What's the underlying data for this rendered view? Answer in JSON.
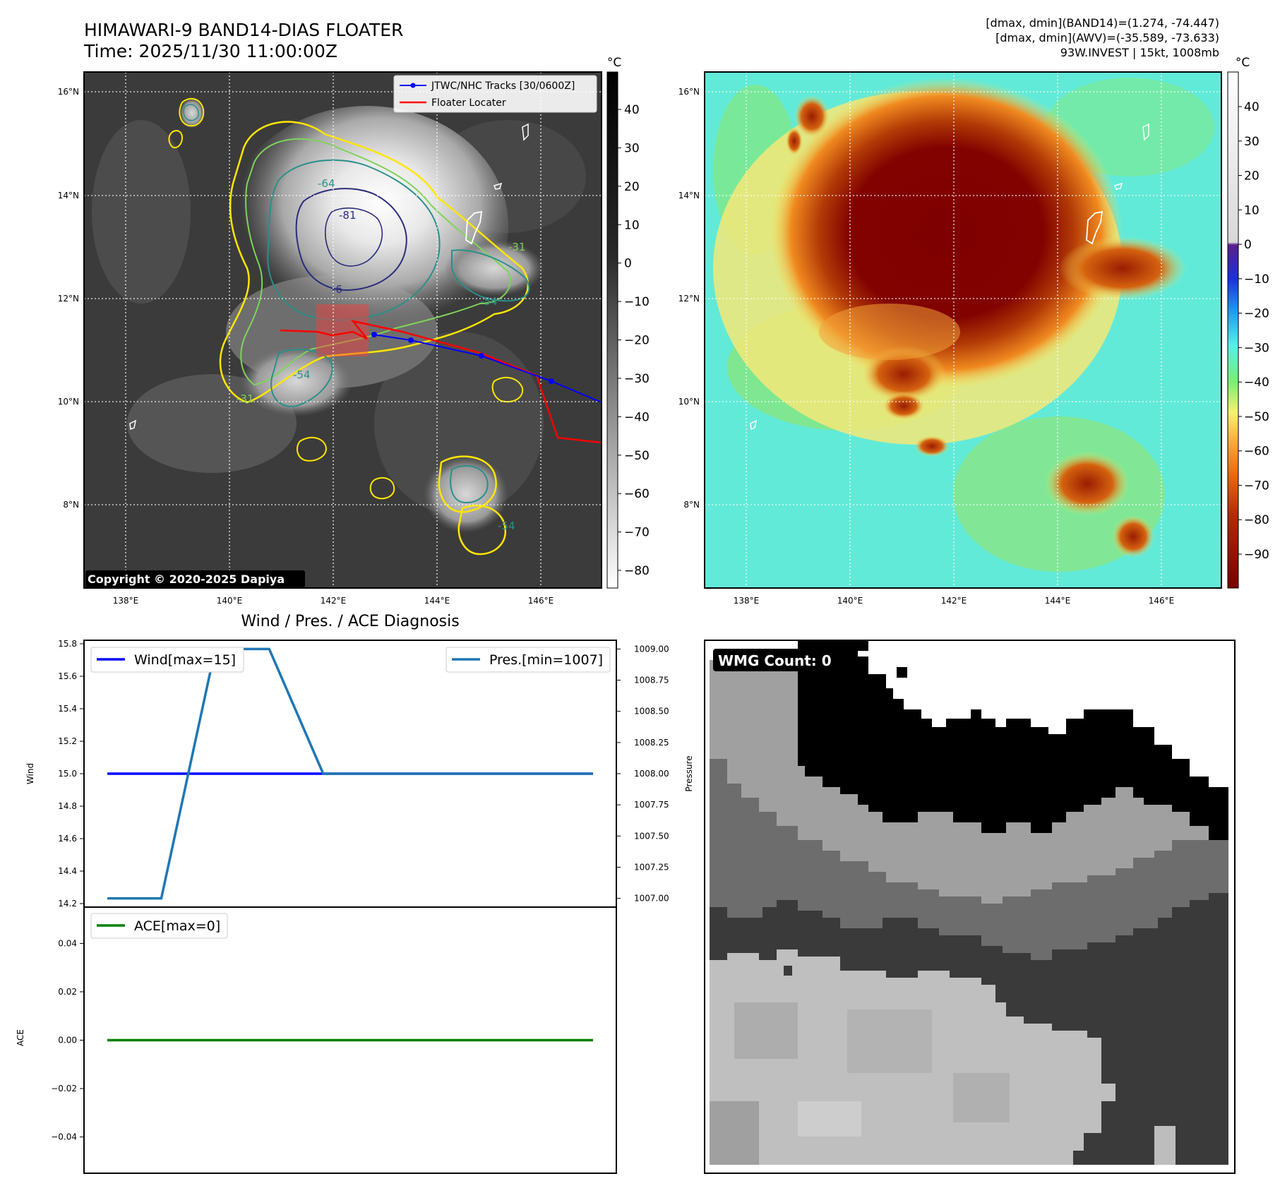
{
  "header": {
    "title_line1": "HIMAWARI-9 BAND14-DIAS FLOATER",
    "title_line2": "Time: 2025/11/30 11:00:00Z",
    "info_line1": "[dmax, dmin](BAND14)=(1.274, -74.447)",
    "info_line2": "[dmax, dmin](AWV)=(-35.589, -73.633)",
    "info_line3": "93W.INVEST | 15kt, 1008mb"
  },
  "map": {
    "lon_ticks": [
      "138°E",
      "140°E",
      "142°E",
      "144°E",
      "146°E"
    ],
    "lat_ticks": [
      "16°N",
      "14°N",
      "12°N",
      "10°N",
      "8°N"
    ],
    "copyright": "Copyright © 2020-2025 Dapiya",
    "legend": [
      "JTWC/NHC Tracks [30/0600Z]",
      "Floater Locater"
    ],
    "contour_labels": [
      "-81",
      "-64",
      "-31",
      "-54",
      "-6",
      "-54",
      "-31",
      "-54"
    ],
    "colorbar_unit": "°C",
    "colorbar_gray_ticks": [
      "40",
      "30",
      "20",
      "10",
      "0",
      "−10",
      "−20",
      "−30",
      "−40",
      "−50",
      "−60",
      "−70",
      "−80"
    ],
    "colorbar_awv_ticks": [
      "40",
      "30",
      "20",
      "10",
      "0",
      "−10",
      "−20",
      "−30",
      "−40",
      "−50",
      "−60",
      "−70",
      "−80",
      "−90"
    ],
    "colors": {
      "track_jtwc": "#0000ff",
      "floater": "#ff0000",
      "contour_yellow": "#ffe600",
      "contour_green": "#7fd35a",
      "contour_teal": "#2a8f8a",
      "contour_navy": "#2b2c7c"
    }
  },
  "diagnosis": {
    "title": "Wind / Pres. / ACE Diagnosis",
    "wmg_count": "WMG Count: 0",
    "pressure_label": "Pressure"
  },
  "chart_data": [
    {
      "type": "line",
      "x": [
        0,
        1,
        2,
        3,
        4,
        5,
        6,
        7,
        8,
        9
      ],
      "series": [
        {
          "name": "Wind[max=15]",
          "axis": "left",
          "color": "#0000ff",
          "values": [
            15,
            15,
            15,
            15,
            15,
            15,
            15,
            15,
            15,
            15
          ]
        },
        {
          "name": "Pres.[min=1007]",
          "axis": "right",
          "color": "#1f77b4",
          "values": [
            1007,
            1007,
            1009,
            1009,
            1008,
            1008,
            1008,
            1008,
            1008,
            1008
          ]
        }
      ],
      "ylabel": "Wind",
      "ylim": [
        14.2,
        15.8
      ],
      "yticks": [
        "15.8",
        "15.6",
        "15.4",
        "15.2",
        "15.0",
        "14.8",
        "14.6",
        "14.4",
        "14.2"
      ],
      "y2lim": [
        1006.93,
        1009.07
      ],
      "y2ticks": [
        "1009.00",
        "1008.75",
        "1008.50",
        "1008.25",
        "1008.00",
        "1007.75",
        "1007.50",
        "1007.25",
        "1007.00"
      ],
      "legend_position": "top"
    },
    {
      "type": "line",
      "x": [
        0,
        1,
        2,
        3,
        4,
        5,
        6,
        7,
        8,
        9
      ],
      "series": [
        {
          "name": "ACE[max=0]",
          "color": "#008000",
          "values": [
            0,
            0,
            0,
            0,
            0,
            0,
            0,
            0,
            0,
            0
          ]
        }
      ],
      "ylabel": "ACE",
      "ylim": [
        -0.055,
        0.055
      ],
      "yticks": [
        "0.04",
        "0.02",
        "0.00",
        "−0.02",
        "−0.04"
      ],
      "legend_position": "top-left"
    }
  ]
}
